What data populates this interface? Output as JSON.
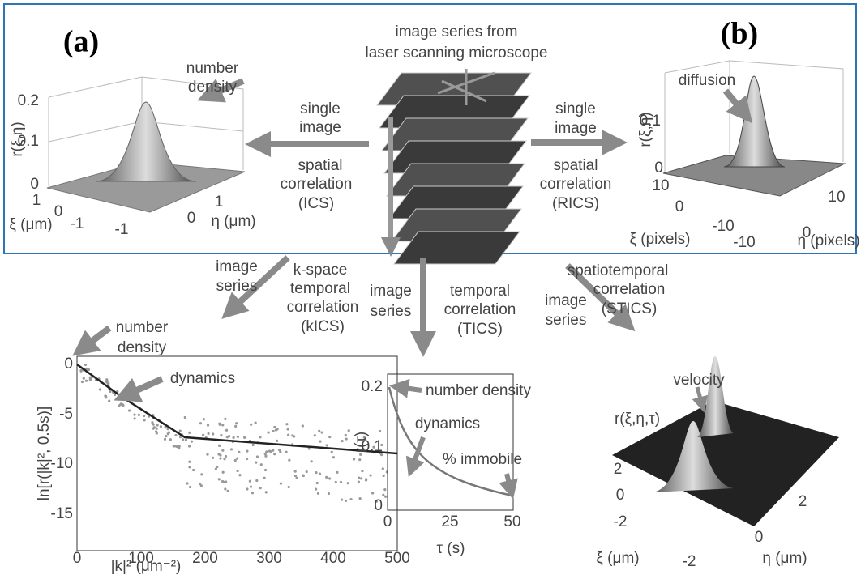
{
  "panel_labels": [
    "(a)",
    "(b)"
  ],
  "source": {
    "lines": [
      "image series from",
      "laser scanning microscope"
    ]
  },
  "ics_plot": {
    "annotation": [
      "number",
      "density"
    ],
    "z_label": "r(ξ,η)",
    "z_ticks": [
      "0.2",
      "0.1",
      "0"
    ],
    "xi_ticks": [
      "1",
      "0",
      "-1"
    ],
    "xi_label": "ξ (μm)",
    "eta_ticks": [
      "-1",
      "0",
      "1"
    ],
    "eta_label": "η (μm)"
  },
  "ics_arrow": {
    "above": [
      "single",
      "image"
    ],
    "below": [
      "spatial",
      "correlation",
      "(ICS)"
    ]
  },
  "rics_arrow": {
    "above": [
      "single",
      "image"
    ],
    "below": [
      "spatial",
      "correlation",
      "(RICS)"
    ]
  },
  "rics_plot": {
    "annotation": "diffusion",
    "z_label": "r(ξ,η)",
    "z_ticks": [
      "0.1",
      "0"
    ],
    "xi_ticks": [
      "10",
      "0",
      "-10"
    ],
    "xi_label": "ξ (pixels)",
    "eta_ticks": [
      "-10",
      "0",
      "10"
    ],
    "eta_label": "η (pixels)"
  },
  "kics_arrow": {
    "left": [
      "image",
      "series"
    ],
    "right": [
      "k-space",
      "temporal",
      "correlation",
      "(kICS)"
    ]
  },
  "tics_arrow": {
    "left": [
      "image",
      "series"
    ],
    "right": [
      "temporal",
      "correlation",
      "(TICS)"
    ]
  },
  "stics_arrow": {
    "left": [
      "image",
      "series"
    ],
    "right": [
      "spatiotemporal",
      "correlation",
      "(STICS)"
    ]
  },
  "kics_plot": {
    "annotation_density": [
      "number",
      "density"
    ],
    "annotation_dynamics": "dynamics",
    "y_label": "ln[r(|k|², 0.5s)]",
    "y_ticks": [
      "0",
      "-5",
      "-10",
      "-15"
    ],
    "x_ticks": [
      "0",
      "100",
      "200",
      "300",
      "400",
      "500"
    ],
    "x_label": "|k|² (μm⁻²)"
  },
  "tics_plot": {
    "annotations": [
      "number density",
      "dynamics",
      "% immobile"
    ],
    "y_label": "r(τ)",
    "y_ticks": [
      "0.2",
      "0.1",
      "0"
    ],
    "x_ticks": [
      "0",
      "25",
      "50"
    ],
    "x_label": "τ (s)"
  },
  "stics_plot": {
    "annotation": "velocity",
    "z_label": "r(ξ,η,τ)",
    "xi_ticks": [
      "2",
      "0",
      "-2"
    ],
    "xi_label": "ξ (μm)",
    "eta_ticks": [
      "-2",
      "0",
      "2"
    ],
    "eta_label": "η (μm)"
  }
}
